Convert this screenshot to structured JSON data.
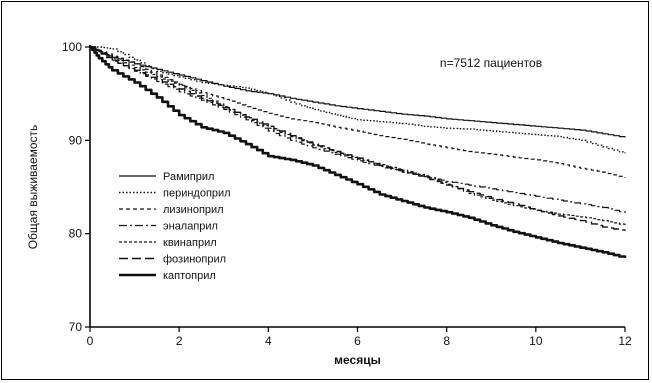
{
  "chart_data": {
    "type": "line",
    "title": "",
    "xlabel": "месяцы",
    "ylabel": "Общая выживаемость",
    "xlim": [
      0,
      12
    ],
    "ylim": [
      70,
      100
    ],
    "xticks": [
      0,
      2,
      4,
      6,
      8,
      10,
      12
    ],
    "yticks": [
      70,
      80,
      90,
      100
    ],
    "grid": false,
    "legend_position": "left-center",
    "annotation": "n=7512 пациентов",
    "series": [
      {
        "name": "Рамиприл",
        "style": "solid",
        "width": 1.2,
        "points": [
          [
            0,
            100
          ],
          [
            0.2,
            99.5
          ],
          [
            0.5,
            98.9
          ],
          [
            1,
            98.2
          ],
          [
            1.5,
            97.6
          ],
          [
            2,
            97
          ],
          [
            2.5,
            96.4
          ],
          [
            3,
            95.8
          ],
          [
            3.5,
            95.3
          ],
          [
            4,
            95
          ],
          [
            4.5,
            94.5
          ],
          [
            5,
            94.1
          ],
          [
            5.5,
            93.7
          ],
          [
            6,
            93.4
          ],
          [
            6.5,
            93.1
          ],
          [
            7,
            92.8
          ],
          [
            7.5,
            92.6
          ],
          [
            8,
            92.3
          ],
          [
            8.5,
            92.1
          ],
          [
            9,
            91.9
          ],
          [
            9.5,
            91.7
          ],
          [
            10,
            91.5
          ],
          [
            10.5,
            91.3
          ],
          [
            11,
            91.1
          ],
          [
            11.5,
            90.7
          ],
          [
            12,
            90.3
          ]
        ]
      },
      {
        "name": "периндоприл",
        "style": "dotted",
        "width": 1.4,
        "points": [
          [
            0,
            100
          ],
          [
            0.2,
            100
          ],
          [
            0.5,
            99.8
          ],
          [
            1,
            98.6
          ],
          [
            1.5,
            97.4
          ],
          [
            2,
            96.8
          ],
          [
            2.5,
            96.2
          ],
          [
            3,
            95.9
          ],
          [
            3.5,
            95.6
          ],
          [
            4,
            95
          ],
          [
            4.5,
            94.1
          ],
          [
            5,
            93.3
          ],
          [
            5.5,
            92.7
          ],
          [
            6,
            92.2
          ],
          [
            6.5,
            92
          ],
          [
            7,
            91.8
          ],
          [
            7.5,
            91.5
          ],
          [
            8,
            91.3
          ],
          [
            8.5,
            91.2
          ],
          [
            9,
            91
          ],
          [
            9.5,
            90.8
          ],
          [
            10,
            90.6
          ],
          [
            10.5,
            90.4
          ],
          [
            11,
            90
          ],
          [
            11.5,
            89.3
          ],
          [
            12,
            88.6
          ]
        ]
      },
      {
        "name": "лизиноприл",
        "style": "dashed",
        "width": 1.2,
        "points": [
          [
            0,
            100
          ],
          [
            0.5,
            99
          ],
          [
            1,
            98.2
          ],
          [
            1.5,
            97
          ],
          [
            2,
            96
          ],
          [
            2.5,
            95.1
          ],
          [
            3,
            94.4
          ],
          [
            3.5,
            93.6
          ],
          [
            4,
            92.9
          ],
          [
            4.5,
            92.3
          ],
          [
            5,
            91.9
          ],
          [
            5.5,
            91.4
          ],
          [
            6,
            91
          ],
          [
            6.5,
            90.5
          ],
          [
            7,
            90.1
          ],
          [
            7.5,
            89.6
          ],
          [
            8,
            89.2
          ],
          [
            8.5,
            88.8
          ],
          [
            9,
            88.5
          ],
          [
            9.5,
            88.2
          ],
          [
            10,
            87.9
          ],
          [
            10.5,
            87.5
          ],
          [
            11,
            87
          ],
          [
            11.5,
            86.6
          ],
          [
            12,
            86
          ]
        ]
      },
      {
        "name": "эналаприл",
        "style": "dashdot",
        "width": 1.2,
        "points": [
          [
            0,
            100
          ],
          [
            0.5,
            98.6
          ],
          [
            1,
            97.4
          ],
          [
            1.5,
            96.3
          ],
          [
            2,
            95.2
          ],
          [
            2.5,
            94.3
          ],
          [
            3,
            93.3
          ],
          [
            3.5,
            92.2
          ],
          [
            4,
            91
          ],
          [
            4.5,
            90
          ],
          [
            5,
            89.2
          ],
          [
            5.5,
            88.5
          ],
          [
            6,
            87.8
          ],
          [
            6.5,
            87.2
          ],
          [
            7,
            86.6
          ],
          [
            7.5,
            86.1
          ],
          [
            8,
            85.6
          ],
          [
            8.5,
            85.2
          ],
          [
            9,
            84.8
          ],
          [
            9.5,
            84.4
          ],
          [
            10,
            84
          ],
          [
            10.5,
            83.6
          ],
          [
            11,
            83.2
          ],
          [
            11.5,
            82.8
          ],
          [
            12,
            82.2
          ]
        ]
      },
      {
        "name": "квинаприл",
        "style": "dashed-fine",
        "width": 1.2,
        "points": [
          [
            0,
            100
          ],
          [
            0.5,
            98.8
          ],
          [
            1,
            97.8
          ],
          [
            1.5,
            96.8
          ],
          [
            2,
            95.9
          ],
          [
            2.5,
            94.8
          ],
          [
            3,
            93.6
          ],
          [
            3.5,
            92.4
          ],
          [
            4,
            91.3
          ],
          [
            4.5,
            90.4
          ],
          [
            5,
            89.5
          ],
          [
            5.5,
            88.7
          ],
          [
            6,
            88
          ],
          [
            6.5,
            87.4
          ],
          [
            7,
            86.8
          ],
          [
            7.5,
            86.2
          ],
          [
            8,
            85.3
          ],
          [
            8.5,
            84.3
          ],
          [
            9,
            83.6
          ],
          [
            9.5,
            83
          ],
          [
            10,
            82.5
          ],
          [
            10.5,
            82.1
          ],
          [
            11,
            81.8
          ],
          [
            11.5,
            81.4
          ],
          [
            12,
            80.9
          ]
        ]
      },
      {
        "name": "фозиноприл",
        "style": "longdash",
        "width": 1.4,
        "points": [
          [
            0,
            100
          ],
          [
            0.5,
            98.5
          ],
          [
            1,
            97.5
          ],
          [
            1.5,
            96.5
          ],
          [
            2,
            95.5
          ],
          [
            2.5,
            94.5
          ],
          [
            3,
            93.5
          ],
          [
            3.5,
            92.5
          ],
          [
            4,
            91.5
          ],
          [
            4.5,
            90.5
          ],
          [
            5,
            89.6
          ],
          [
            5.5,
            88.8
          ],
          [
            6,
            88.1
          ],
          [
            6.5,
            87.3
          ],
          [
            7,
            86.7
          ],
          [
            7.5,
            86
          ],
          [
            8,
            85.2
          ],
          [
            8.5,
            84.5
          ],
          [
            9,
            83.8
          ],
          [
            9.5,
            83.2
          ],
          [
            10,
            82.5
          ],
          [
            10.5,
            81.9
          ],
          [
            11,
            81.4
          ],
          [
            11.5,
            80.7
          ],
          [
            12,
            80.3
          ]
        ]
      },
      {
        "name": "каптоприл",
        "style": "solid-bold",
        "width": 2.6,
        "points": [
          [
            0,
            100
          ],
          [
            0.2,
            98.8
          ],
          [
            0.5,
            97.5
          ],
          [
            1,
            96.2
          ],
          [
            1.5,
            94.6
          ],
          [
            2,
            92.7
          ],
          [
            2.5,
            91.4
          ],
          [
            3,
            90.8
          ],
          [
            3.5,
            89.6
          ],
          [
            4,
            88.3
          ],
          [
            4.5,
            87.9
          ],
          [
            5,
            87.3
          ],
          [
            5.5,
            86.3
          ],
          [
            6,
            85.3
          ],
          [
            6.5,
            84.2
          ],
          [
            7,
            83.5
          ],
          [
            7.5,
            82.8
          ],
          [
            8,
            82.3
          ],
          [
            8.5,
            81.7
          ],
          [
            9,
            80.9
          ],
          [
            9.5,
            80.2
          ],
          [
            10,
            79.6
          ],
          [
            10.5,
            79
          ],
          [
            11,
            78.5
          ],
          [
            11.5,
            78
          ],
          [
            12,
            77.4
          ]
        ]
      }
    ]
  }
}
